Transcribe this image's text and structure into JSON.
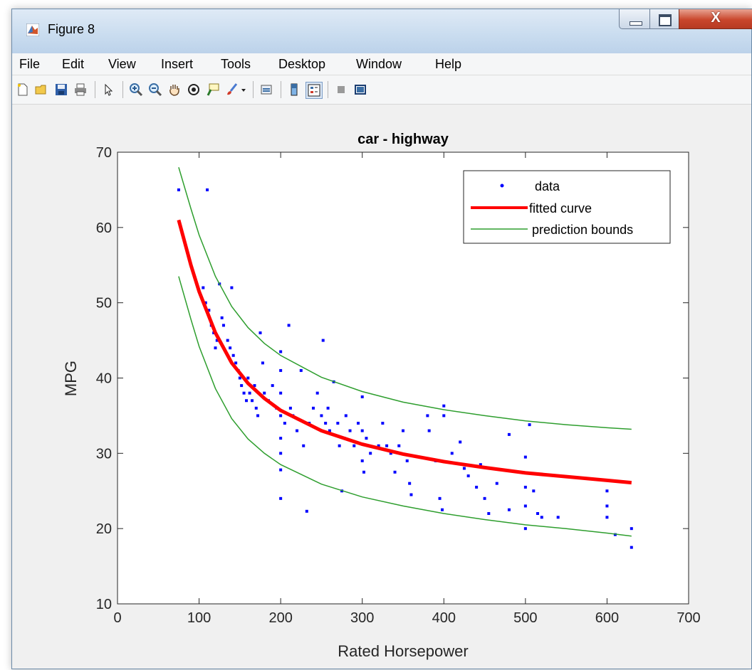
{
  "window": {
    "title": "Figure 8",
    "close_glyph": "X"
  },
  "menu": [
    "File",
    "Edit",
    "View",
    "Insert",
    "Tools",
    "Desktop",
    "Window",
    "Help"
  ],
  "toolbar_icons": [
    "new-figure-icon",
    "open-file-icon",
    "save-icon",
    "print-icon",
    "pointer-icon",
    "zoom-in-icon",
    "zoom-out-icon",
    "pan-hand-icon",
    "rotate-3d-icon",
    "data-cursor-icon",
    "brush-icon",
    "brush-dropdown-icon",
    "link-plot-icon",
    "colorbar-icon",
    "legend-icon",
    "hide-plot-tools-icon",
    "show-plot-tools-icon"
  ],
  "colors": {
    "data": "#0000ff",
    "fit": "#ff0000",
    "bounds": "#2e9e2e"
  },
  "chart_data": {
    "type": "scatter",
    "title": "car - highway",
    "xlabel": "Rated Horsepower",
    "ylabel": "MPG",
    "xlim": [
      0,
      700
    ],
    "ylim": [
      10,
      70
    ],
    "xticks": [
      0,
      100,
      200,
      300,
      400,
      500,
      600,
      700
    ],
    "yticks": [
      10,
      20,
      30,
      40,
      50,
      60,
      70
    ],
    "legend": {
      "placement": "top-right",
      "entries": [
        "data",
        "fitted curve",
        "prediction bounds"
      ]
    },
    "grid": false,
    "series": [
      {
        "name": "data",
        "kind": "points",
        "points": [
          [
            75,
            65
          ],
          [
            110,
            65
          ],
          [
            105,
            52
          ],
          [
            108,
            50
          ],
          [
            112,
            49
          ],
          [
            115,
            47
          ],
          [
            118,
            46
          ],
          [
            120,
            44
          ],
          [
            122,
            45
          ],
          [
            125,
            52.5
          ],
          [
            128,
            48
          ],
          [
            130,
            47
          ],
          [
            135,
            45
          ],
          [
            138,
            44
          ],
          [
            140,
            52
          ],
          [
            142,
            43
          ],
          [
            145,
            42
          ],
          [
            148,
            41
          ],
          [
            150,
            40
          ],
          [
            152,
            39
          ],
          [
            155,
            38
          ],
          [
            158,
            37
          ],
          [
            160,
            40
          ],
          [
            162,
            38
          ],
          [
            165,
            37
          ],
          [
            168,
            39
          ],
          [
            170,
            36
          ],
          [
            172,
            35
          ],
          [
            175,
            46
          ],
          [
            178,
            42
          ],
          [
            180,
            38
          ],
          [
            185,
            37
          ],
          [
            190,
            39
          ],
          [
            195,
            36
          ],
          [
            200,
            43.5
          ],
          [
            200,
            41
          ],
          [
            200,
            38
          ],
          [
            200,
            35
          ],
          [
            200,
            32
          ],
          [
            200,
            30
          ],
          [
            200,
            27.8
          ],
          [
            200,
            24
          ],
          [
            205,
            34
          ],
          [
            210,
            47
          ],
          [
            212,
            36
          ],
          [
            215,
            35
          ],
          [
            220,
            33
          ],
          [
            225,
            41
          ],
          [
            228,
            31
          ],
          [
            232,
            22.3
          ],
          [
            235,
            34
          ],
          [
            240,
            36
          ],
          [
            245,
            38
          ],
          [
            250,
            35
          ],
          [
            252,
            45
          ],
          [
            255,
            34
          ],
          [
            258,
            36
          ],
          [
            260,
            33
          ],
          [
            265,
            39.5
          ],
          [
            270,
            34
          ],
          [
            272,
            31
          ],
          [
            275,
            25
          ],
          [
            278,
            32
          ],
          [
            280,
            35
          ],
          [
            285,
            33
          ],
          [
            290,
            31
          ],
          [
            295,
            34
          ],
          [
            300,
            37.5
          ],
          [
            300,
            33
          ],
          [
            300,
            29
          ],
          [
            302,
            27.5
          ],
          [
            305,
            32
          ],
          [
            310,
            30
          ],
          [
            320,
            31
          ],
          [
            325,
            34
          ],
          [
            330,
            31
          ],
          [
            335,
            30
          ],
          [
            340,
            27.5
          ],
          [
            345,
            31
          ],
          [
            350,
            33
          ],
          [
            355,
            29
          ],
          [
            358,
            26
          ],
          [
            360,
            24.5
          ],
          [
            380,
            35
          ],
          [
            382,
            33
          ],
          [
            390,
            29
          ],
          [
            395,
            24
          ],
          [
            398,
            22.5
          ],
          [
            400,
            36.3
          ],
          [
            400,
            35
          ],
          [
            410,
            30
          ],
          [
            420,
            31.5
          ],
          [
            425,
            28
          ],
          [
            430,
            27
          ],
          [
            440,
            25.5
          ],
          [
            445,
            28.5
          ],
          [
            450,
            24
          ],
          [
            455,
            22
          ],
          [
            465,
            26
          ],
          [
            480,
            32.5
          ],
          [
            480,
            22.5
          ],
          [
            500,
            29.5
          ],
          [
            500,
            25.5
          ],
          [
            500,
            23
          ],
          [
            500,
            20
          ],
          [
            505,
            33.8
          ],
          [
            510,
            25
          ],
          [
            515,
            22
          ],
          [
            520,
            21.5
          ],
          [
            540,
            21.5
          ],
          [
            600,
            25
          ],
          [
            600,
            23
          ],
          [
            600,
            21.5
          ],
          [
            610,
            19.2
          ],
          [
            630,
            20
          ],
          [
            630,
            17.5
          ]
        ]
      },
      {
        "name": "fitted curve",
        "kind": "curve",
        "points": [
          [
            75,
            61
          ],
          [
            90,
            55
          ],
          [
            100,
            51.5
          ],
          [
            120,
            46
          ],
          [
            140,
            42
          ],
          [
            160,
            39.3
          ],
          [
            180,
            37.3
          ],
          [
            200,
            35.7
          ],
          [
            250,
            33
          ],
          [
            300,
            31.2
          ],
          [
            350,
            29.9
          ],
          [
            400,
            28.9
          ],
          [
            450,
            28.1
          ],
          [
            500,
            27.4
          ],
          [
            550,
            26.9
          ],
          [
            600,
            26.4
          ],
          [
            630,
            26.1
          ]
        ]
      },
      {
        "name": "prediction bounds",
        "kind": "curve",
        "points": [
          [
            75,
            68
          ],
          [
            90,
            62.5
          ],
          [
            100,
            59
          ],
          [
            120,
            53.5
          ],
          [
            140,
            49.5
          ],
          [
            160,
            46.7
          ],
          [
            180,
            44.6
          ],
          [
            200,
            43
          ],
          [
            250,
            40.1
          ],
          [
            300,
            38.2
          ],
          [
            350,
            36.8
          ],
          [
            400,
            35.8
          ],
          [
            450,
            35
          ],
          [
            500,
            34.3
          ],
          [
            550,
            33.8
          ],
          [
            600,
            33.4
          ],
          [
            630,
            33.2
          ]
        ]
      },
      {
        "name": "prediction bounds",
        "kind": "curve",
        "points": [
          [
            75,
            53.5
          ],
          [
            90,
            47.8
          ],
          [
            100,
            44.2
          ],
          [
            120,
            38.6
          ],
          [
            140,
            34.6
          ],
          [
            160,
            31.9
          ],
          [
            180,
            30
          ],
          [
            200,
            28.5
          ],
          [
            250,
            25.9
          ],
          [
            300,
            24.2
          ],
          [
            350,
            23
          ],
          [
            400,
            22
          ],
          [
            450,
            21.2
          ],
          [
            500,
            20.5
          ],
          [
            550,
            20
          ],
          [
            600,
            19.4
          ],
          [
            630,
            19
          ]
        ]
      }
    ]
  }
}
